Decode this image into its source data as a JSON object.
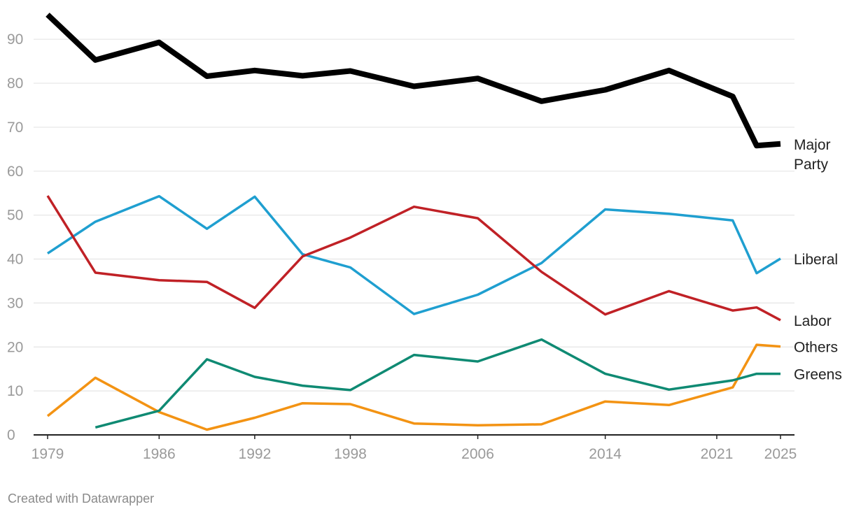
{
  "chart_data": {
    "type": "line",
    "title": "",
    "xlabel": "",
    "ylabel": "",
    "xlim": [
      1979,
      2025
    ],
    "ylim": [
      0,
      96
    ],
    "x_ticks": [
      1979,
      1986,
      1992,
      1998,
      2006,
      2014,
      2021,
      2025
    ],
    "y_ticks": [
      0,
      10,
      20,
      30,
      40,
      50,
      60,
      70,
      80,
      90
    ],
    "grid": true,
    "legend": "direct labels at right end of lines",
    "series": [
      {
        "name": "Major Party",
        "color": "#000000",
        "x": [
          1979,
          1982,
          1986,
          1989,
          1992,
          1995,
          1998,
          2002,
          2006,
          2010,
          2014,
          2018,
          2022,
          2023.5,
          2025
        ],
        "values": [
          95.6,
          85.3,
          89.3,
          81.6,
          82.9,
          81.7,
          82.8,
          79.3,
          81.1,
          75.9,
          78.5,
          82.9,
          77.0,
          65.8,
          66.2
        ]
      },
      {
        "name": "Liberal",
        "color": "#1f9fd0",
        "x": [
          1979,
          1982,
          1986,
          1989,
          1992,
          1995,
          1998,
          2002,
          2006,
          2010,
          2014,
          2018,
          2022,
          2023.5,
          2025
        ],
        "values": [
          41.3,
          48.5,
          54.3,
          46.9,
          54.2,
          41.1,
          38.1,
          27.5,
          31.9,
          39.1,
          51.3,
          50.3,
          48.8,
          36.8,
          40.1
        ]
      },
      {
        "name": "Labor",
        "color": "#c02126",
        "x": [
          1979,
          1982,
          1986,
          1989,
          1992,
          1995,
          1998,
          2002,
          2006,
          2010,
          2014,
          2018,
          2022,
          2023.5,
          2025
        ],
        "values": [
          54.4,
          36.9,
          35.2,
          34.8,
          28.9,
          40.6,
          44.9,
          51.9,
          49.3,
          37.1,
          27.4,
          32.7,
          28.3,
          29.0,
          26.1
        ]
      },
      {
        "name": "Others",
        "color": "#f39313",
        "x": [
          1979,
          1982,
          1986,
          1989,
          1992,
          1995,
          1998,
          2002,
          2006,
          2010,
          2014,
          2018,
          2022,
          2023.5,
          2025
        ],
        "values": [
          4.3,
          13.0,
          5.2,
          1.2,
          3.9,
          7.2,
          7.0,
          2.6,
          2.2,
          2.4,
          7.6,
          6.8,
          10.8,
          20.5,
          20.1
        ]
      },
      {
        "name": "Greens",
        "color": "#0f8a73",
        "x": [
          1982,
          1986,
          1989,
          1992,
          1995,
          1998,
          2002,
          2006,
          2010,
          2014,
          2018,
          2022,
          2023.5,
          2025
        ],
        "values": [
          1.7,
          5.5,
          17.2,
          13.2,
          11.2,
          10.2,
          18.2,
          16.7,
          21.7,
          13.9,
          10.3,
          12.4,
          13.9,
          13.9
        ]
      }
    ]
  },
  "credit": "Created with Datawrapper",
  "colors": {
    "grid": "#e5e5e5",
    "axis": "#222222",
    "tick_text": "#9a9a9a"
  }
}
